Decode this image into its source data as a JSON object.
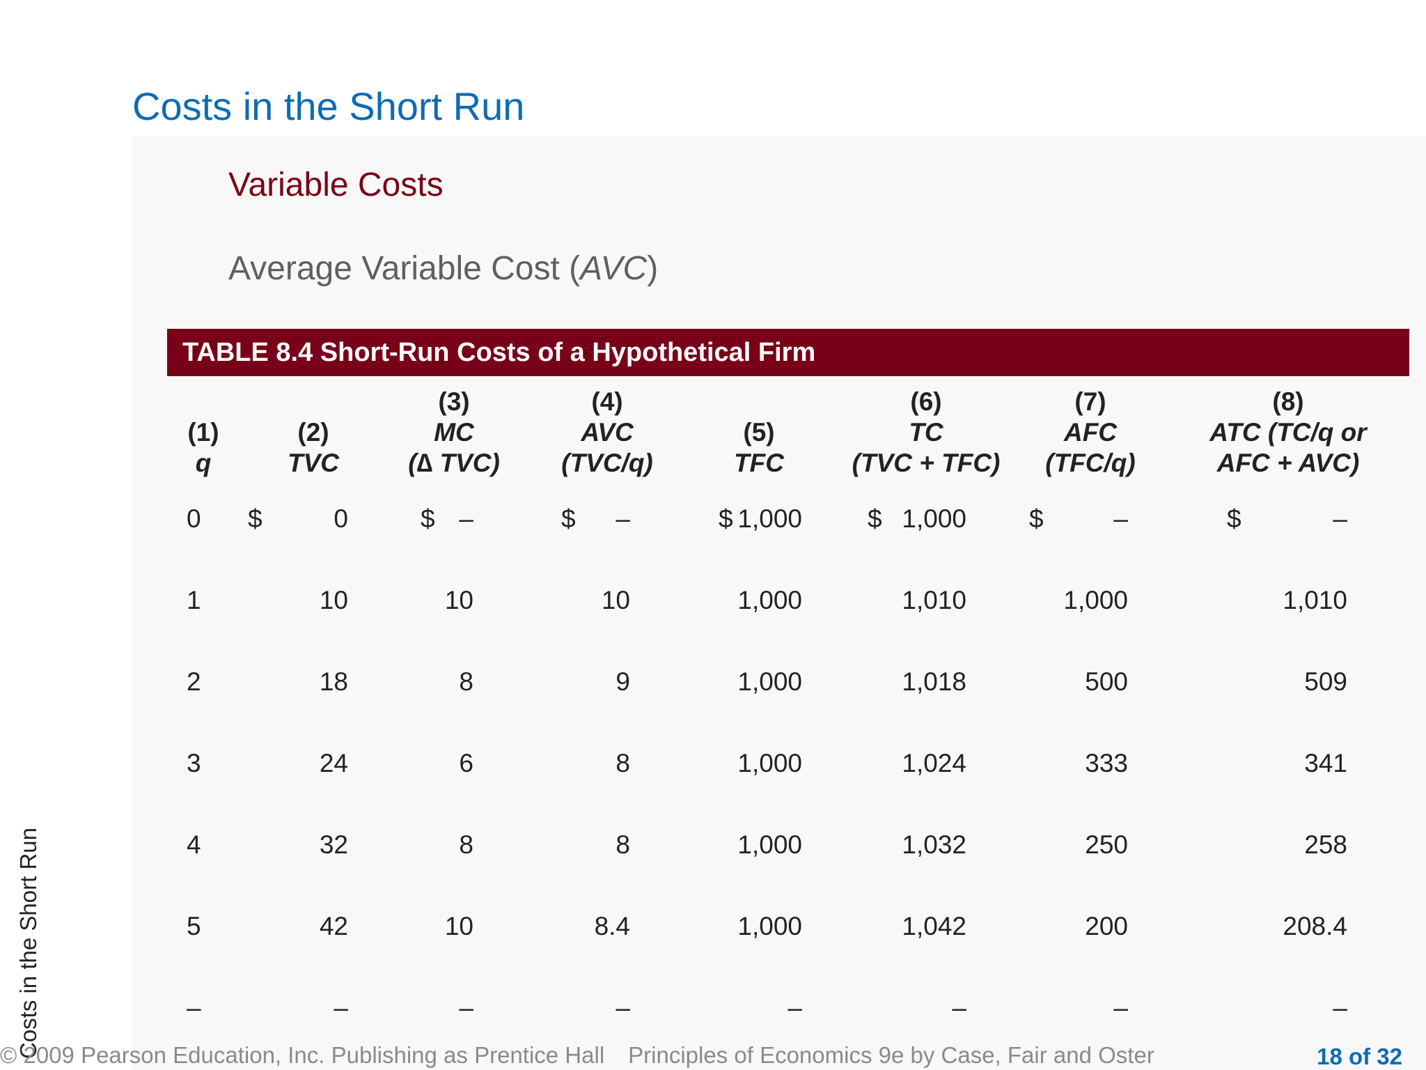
{
  "slide": {
    "title": "Costs in the Short Run",
    "subtitle": "Variable Costs",
    "subsub_prefix": "Average Variable Cost (",
    "subsub_italic": "AVC",
    "subsub_suffix": ")"
  },
  "table": {
    "caption": "TABLE 8.4  Short-Run Costs of a Hypothetical Firm",
    "columns": [
      {
        "num": "(1)",
        "lines": [
          "q"
        ]
      },
      {
        "num": "(2)",
        "lines": [
          "TVC"
        ]
      },
      {
        "num": "(3)",
        "lines": [
          "MC",
          "(∆ TVC)"
        ]
      },
      {
        "num": "(4)",
        "lines": [
          "AVC",
          "(TVC/q)"
        ]
      },
      {
        "num": "(5)",
        "lines": [
          "TFC"
        ]
      },
      {
        "num": "(6)",
        "lines": [
          "TC",
          "(TVC + TFC)"
        ]
      },
      {
        "num": "(7)",
        "lines": [
          "AFC",
          "(TFC/q)"
        ]
      },
      {
        "num": "(8)",
        "lines": [
          "ATC (TC/q or",
          "AFC + AVC)"
        ]
      }
    ],
    "dollar_sign": "$",
    "rows": [
      [
        "0",
        "0",
        "–",
        "–",
        "1,000",
        "1,000",
        "–",
        "–"
      ],
      [
        "1",
        "10",
        "10",
        "10",
        "1,000",
        "1,010",
        "1,000",
        "1,010"
      ],
      [
        "2",
        "18",
        "8",
        "9",
        "1,000",
        "1,018",
        "500",
        "509"
      ],
      [
        "3",
        "24",
        "6",
        "8",
        "1,000",
        "1,024",
        "333",
        "341"
      ],
      [
        "4",
        "32",
        "8",
        "8",
        "1,000",
        "1,032",
        "250",
        "258"
      ],
      [
        "5",
        "42",
        "10",
        "8.4",
        "1,000",
        "1,042",
        "200",
        "208.4"
      ],
      [
        "–",
        "–",
        "–",
        "–",
        "–",
        "–",
        "–",
        "–"
      ]
    ]
  },
  "footer": {
    "copyright": "© 2009 Pearson Education, Inc. Publishing as Prentice Hall",
    "book": "Principles of Economics 9e by Case, Fair and Oster",
    "page": "18 of 32"
  },
  "side_label": "Costs in the Short Run"
}
